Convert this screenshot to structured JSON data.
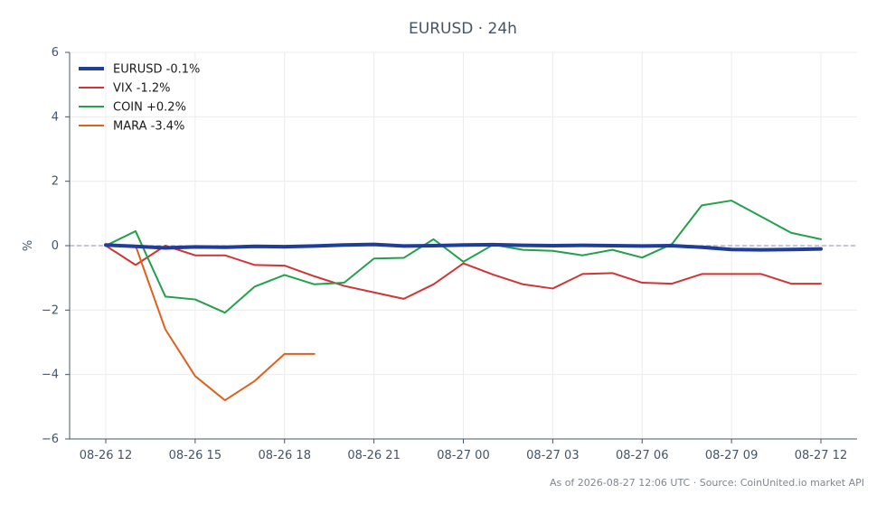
{
  "chart_data": {
    "type": "line",
    "title": "EURUSD · 24h",
    "xlabel": "",
    "ylabel": "%",
    "ylim": [
      -6,
      6
    ],
    "yticks": [
      -6,
      -4,
      -2,
      0,
      2,
      4,
      6
    ],
    "ytick_labels": [
      "−6",
      "−4",
      "−2",
      "0",
      "2",
      "4",
      "6"
    ],
    "x_count": 25,
    "xticks": [
      0,
      3,
      6,
      9,
      12,
      15,
      18,
      21,
      24
    ],
    "xtick_labels": [
      "08-26 12",
      "08-26 15",
      "08-26 18",
      "08-26 21",
      "08-27 00",
      "08-27 03",
      "08-27 06",
      "08-27 09",
      "08-27 12"
    ],
    "grid": true,
    "zero_line": true,
    "legend_position": "top-left",
    "series": [
      {
        "name": "EURUSD -0.1%",
        "color": "#1f3d99",
        "width": 4,
        "values": [
          0.02,
          -0.02,
          -0.07,
          -0.04,
          -0.05,
          -0.02,
          -0.03,
          -0.01,
          0.02,
          0.04,
          -0.01,
          0.0,
          0.02,
          0.03,
          0.01,
          0.0,
          0.01,
          0.0,
          -0.01,
          0.0,
          -0.05,
          -0.12,
          -0.13,
          -0.12,
          -0.1
        ]
      },
      {
        "name": "VIX -1.2%",
        "color": "#d03535",
        "width": 2,
        "values": [
          0.0,
          -0.6,
          0.0,
          -0.3,
          -0.3,
          -0.6,
          -0.62,
          -0.95,
          -1.25,
          -1.45,
          -1.65,
          -1.2,
          -0.55,
          -0.9,
          -1.2,
          -1.33,
          -0.88,
          -0.85,
          -1.15,
          -1.18,
          -0.88,
          -0.88,
          -0.88,
          -1.18,
          -1.18
        ]
      },
      {
        "name": "COIN +0.2%",
        "color": "#22a14a",
        "width": 2,
        "values": [
          0.0,
          0.45,
          -1.58,
          -1.67,
          -2.08,
          -1.27,
          -0.91,
          -1.2,
          -1.15,
          -0.4,
          -0.38,
          0.2,
          -0.5,
          0.03,
          -0.13,
          -0.16,
          -0.3,
          -0.13,
          -0.37,
          0.05,
          1.25,
          1.4,
          0.9,
          0.4,
          0.2
        ]
      },
      {
        "name": "MARA -3.4%",
        "color": "#e0611d",
        "width": 2,
        "values": [
          null,
          0.0,
          -2.6,
          -4.05,
          -4.8,
          -4.2,
          -3.36,
          -3.36,
          null,
          null,
          null,
          null,
          null,
          null,
          null,
          null,
          null,
          null,
          null,
          null,
          null,
          null,
          null,
          null,
          null
        ]
      }
    ]
  },
  "footer": "As of 2026-08-27 12:06 UTC · Source: CoinUnited.io market API"
}
